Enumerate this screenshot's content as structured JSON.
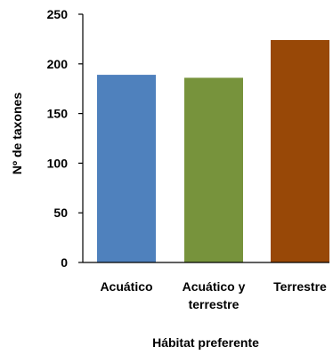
{
  "chart_data": {
    "type": "bar",
    "xlabel": "Hábitat preferente",
    "ylabel": "Nº de taxones",
    "ylim": [
      0,
      250
    ],
    "yticks": [
      0,
      50,
      100,
      150,
      200,
      250
    ],
    "grid": false,
    "categories": [
      {
        "lines": [
          "Acuático"
        ],
        "value": 189,
        "color": "#4F81BD"
      },
      {
        "lines": [
          "Acuático y",
          "terrestre"
        ],
        "value": 186,
        "color": "#77933C"
      },
      {
        "lines": [
          "Terrestre"
        ],
        "value": 224,
        "color": "#984807"
      }
    ]
  }
}
